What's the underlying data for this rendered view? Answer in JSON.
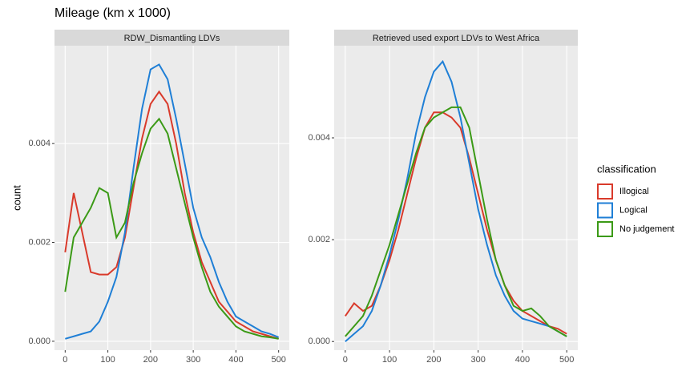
{
  "chart_data": [
    {
      "type": "line",
      "title": "Mileage (km x 1000)",
      "y_label": "count",
      "legend_title": "classification",
      "subtitle": "RDW_Dismantling LDVs",
      "x": [
        0,
        20,
        40,
        60,
        80,
        100,
        120,
        140,
        160,
        180,
        200,
        220,
        240,
        260,
        280,
        300,
        320,
        340,
        360,
        380,
        400,
        420,
        440,
        460,
        480,
        500
      ],
      "series": [
        {
          "name": "Illogical",
          "color": "#d93a2b",
          "values": [
            0.0018,
            0.003,
            0.0022,
            0.0014,
            0.00135,
            0.00135,
            0.0015,
            0.0021,
            0.0031,
            0.0041,
            0.0048,
            0.00505,
            0.0048,
            0.004,
            0.003,
            0.0022,
            0.0016,
            0.0012,
            0.0008,
            0.0006,
            0.0004,
            0.0003,
            0.0002,
            0.00015,
            0.0001,
            5e-05
          ]
        },
        {
          "name": "Logical",
          "color": "#1f7fd6",
          "values": [
            5e-05,
            0.0001,
            0.00015,
            0.0002,
            0.0004,
            0.0008,
            0.0013,
            0.0022,
            0.0035,
            0.0047,
            0.0055,
            0.0056,
            0.0053,
            0.0045,
            0.0036,
            0.0027,
            0.0021,
            0.0017,
            0.0012,
            0.0008,
            0.0005,
            0.0004,
            0.0003,
            0.0002,
            0.00015,
            8e-05
          ]
        },
        {
          "name": "No judgement",
          "color": "#3b9a16",
          "values": [
            0.001,
            0.0021,
            0.0024,
            0.0027,
            0.0031,
            0.003,
            0.0021,
            0.0024,
            0.0032,
            0.0038,
            0.0043,
            0.0045,
            0.0042,
            0.0035,
            0.0028,
            0.0021,
            0.0015,
            0.001,
            0.0007,
            0.0005,
            0.0003,
            0.0002,
            0.00015,
            0.0001,
            8e-05,
            5e-05
          ]
        }
      ],
      "xlim": [
        -25,
        525
      ],
      "xticks": [
        0,
        100,
        200,
        300,
        400,
        500
      ],
      "ylim": [
        -0.00018,
        0.00598
      ],
      "yticks": [
        {
          "value": 0,
          "label": "0.000"
        },
        {
          "value": 0.002,
          "label": "0.002"
        },
        {
          "value": 0.004,
          "label": "0.004"
        }
      ],
      "grid": true
    },
    {
      "type": "line",
      "subtitle": "Retrieved used export LDVs to West Africa",
      "x": [
        0,
        20,
        40,
        60,
        80,
        100,
        120,
        140,
        160,
        180,
        200,
        220,
        240,
        260,
        280,
        300,
        320,
        340,
        360,
        380,
        400,
        420,
        440,
        460,
        480,
        500
      ],
      "series": [
        {
          "color": "#d93a2b",
          "values": [
            0.0005,
            0.00075,
            0.0006,
            0.0007,
            0.0011,
            0.0016,
            0.0022,
            0.0029,
            0.0036,
            0.0042,
            0.0045,
            0.0045,
            0.0044,
            0.0042,
            0.0036,
            0.0029,
            0.0022,
            0.0016,
            0.0011,
            0.0008,
            0.0006,
            0.0005,
            0.0004,
            0.0003,
            0.00025,
            0.00015
          ]
        },
        {
          "color": "#1f7fd6",
          "values": [
            0,
            0.00015,
            0.0003,
            0.0006,
            0.0011,
            0.0017,
            0.0024,
            0.0032,
            0.0041,
            0.0048,
            0.0053,
            0.0055,
            0.0051,
            0.0044,
            0.0035,
            0.0026,
            0.0019,
            0.0013,
            0.0009,
            0.0006,
            0.00045,
            0.0004,
            0.00035,
            0.0003,
            0.0002,
            0.0001
          ]
        },
        {
          "color": "#3b9a16",
          "values": [
            0.0001,
            0.0003,
            0.0005,
            0.0009,
            0.0014,
            0.0019,
            0.0025,
            0.0031,
            0.0037,
            0.0042,
            0.0044,
            0.0045,
            0.0046,
            0.0046,
            0.0042,
            0.0033,
            0.0024,
            0.0016,
            0.0011,
            0.0007,
            0.0006,
            0.00065,
            0.0005,
            0.0003,
            0.0002,
            0.0001
          ]
        }
      ],
      "xlim": [
        -25,
        525
      ],
      "xticks": [
        0,
        100,
        200,
        300,
        400,
        500
      ],
      "ylim": [
        -0.00017,
        0.00581
      ],
      "yticks": [
        {
          "value": 0,
          "label": "0.000"
        },
        {
          "value": 0.002,
          "label": "0.002"
        },
        {
          "value": 0.004,
          "label": "0.004"
        }
      ],
      "grid": true
    }
  ]
}
